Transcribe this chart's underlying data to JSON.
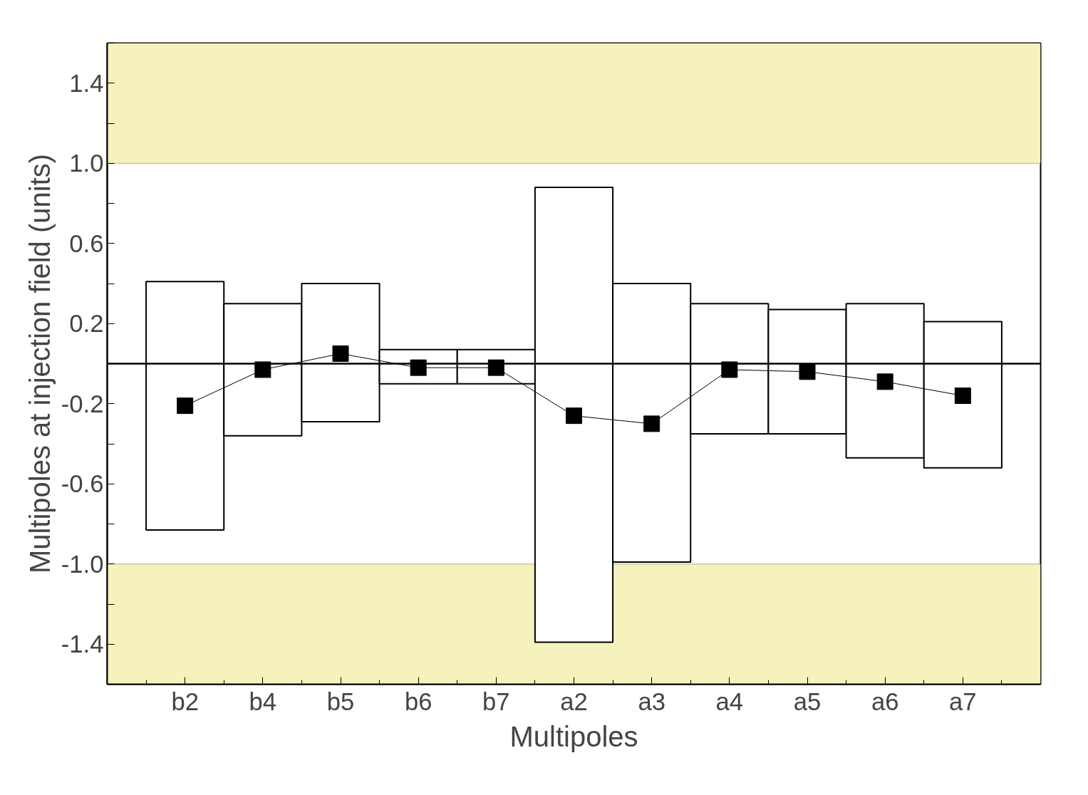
{
  "chart_data": {
    "type": "bar",
    "xlabel": "Multipoles",
    "ylabel": "Multipoles at injection field (units)",
    "categories": [
      "b2",
      "b4",
      "b5",
      "b6",
      "b7",
      "a2",
      "a3",
      "a4",
      "a5",
      "a6",
      "a7"
    ],
    "series": [
      {
        "color": "#ffffff",
        "base": [
          -0.83,
          -0.36,
          -0.29,
          -0.1,
          -0.1,
          -1.39,
          -0.99,
          -0.35,
          -0.35,
          -0.47,
          -0.52
        ],
        "values": [
          1.24,
          0.66,
          0.69,
          0.17,
          0.17,
          2.27,
          1.39,
          0.65,
          0.62,
          0.77,
          0.73
        ]
      },
      {
        "type": "line",
        "color": "#000000",
        "marker": "square",
        "values": [
          -0.21,
          -0.03,
          0.05,
          -0.02,
          -0.02,
          -0.26,
          -0.3,
          -0.03,
          -0.04,
          -0.09,
          -0.16
        ]
      }
    ],
    "ylim": [
      -1.6,
      1.6
    ],
    "yticks": [
      {
        "value": -1.6,
        "label": null
      },
      -1.4,
      {
        "value": -1.2,
        "label": null
      },
      {
        "value": -1.0,
        "label": "-1.0"
      },
      {
        "value": -0.8,
        "label": null
      },
      -0.6,
      {
        "value": -0.4,
        "label": null
      },
      -0.2,
      {
        "value": 0,
        "label": null
      },
      0.2,
      {
        "value": 0.4,
        "label": null
      },
      0.6,
      {
        "value": 0.8,
        "label": null
      },
      {
        "value": 1.0,
        "label": "1.0"
      },
      {
        "value": 1.2,
        "label": null
      },
      1.4,
      {
        "value": 1.6,
        "label": null
      }
    ],
    "ref_lines": [
      {
        "axis": "y",
        "value": 0,
        "color": "#000000"
      }
    ],
    "bands": [
      {
        "axis": "y",
        "from": 1.0,
        "to": 1.6,
        "color": "#f5f2bd"
      },
      {
        "axis": "y",
        "from": -1.6,
        "to": -1.0,
        "color": "#f5f2bd"
      }
    ],
    "grid": false
  }
}
